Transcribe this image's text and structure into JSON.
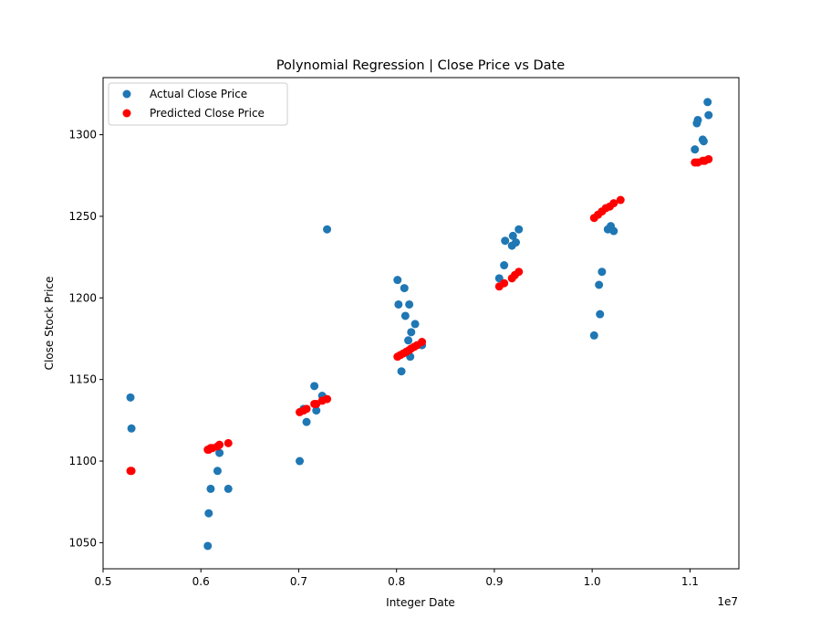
{
  "chart_data": {
    "type": "scatter",
    "title": "Polynomial Regression | Close Price vs Date",
    "xlabel": "Integer Date",
    "ylabel": "Close Stock Price",
    "x_offset_label": "1e7",
    "xlim": [
      0.5,
      1.15
    ],
    "ylim": [
      1034,
      1335
    ],
    "xticks": [
      0.5,
      0.6,
      0.7,
      0.8,
      0.9,
      1.0,
      1.1
    ],
    "xtick_labels": [
      "0.5",
      "0.6",
      "0.7",
      "0.8",
      "0.9",
      "1.0",
      "1.1"
    ],
    "yticks": [
      1050,
      1100,
      1150,
      1200,
      1250,
      1300
    ],
    "ytick_labels": [
      "1050",
      "1100",
      "1150",
      "1200",
      "1250",
      "1300"
    ],
    "legend": {
      "position": "top-left"
    },
    "series": [
      {
        "name": "Actual Close Price",
        "color": "#1f77b4",
        "points": [
          [
            0.528,
            1139
          ],
          [
            0.529,
            1120
          ],
          [
            0.607,
            1048
          ],
          [
            0.608,
            1068
          ],
          [
            0.61,
            1083
          ],
          [
            0.617,
            1094
          ],
          [
            0.619,
            1105
          ],
          [
            0.628,
            1083
          ],
          [
            0.701,
            1100
          ],
          [
            0.705,
            1132
          ],
          [
            0.708,
            1124
          ],
          [
            0.716,
            1146
          ],
          [
            0.718,
            1131
          ],
          [
            0.724,
            1140
          ],
          [
            0.729,
            1242
          ],
          [
            0.801,
            1211
          ],
          [
            0.802,
            1196
          ],
          [
            0.805,
            1155
          ],
          [
            0.808,
            1206
          ],
          [
            0.809,
            1189
          ],
          [
            0.812,
            1174
          ],
          [
            0.813,
            1196
          ],
          [
            0.814,
            1164
          ],
          [
            0.815,
            1179
          ],
          [
            0.819,
            1184
          ],
          [
            0.826,
            1171
          ],
          [
            0.905,
            1212
          ],
          [
            0.91,
            1220
          ],
          [
            0.911,
            1235
          ],
          [
            0.918,
            1232
          ],
          [
            0.919,
            1238
          ],
          [
            0.922,
            1234
          ],
          [
            0.925,
            1242
          ],
          [
            1.002,
            1177
          ],
          [
            1.007,
            1208
          ],
          [
            1.008,
            1190
          ],
          [
            1.01,
            1216
          ],
          [
            1.016,
            1242
          ],
          [
            1.019,
            1244
          ],
          [
            1.022,
            1241
          ],
          [
            1.105,
            1291
          ],
          [
            1.107,
            1307
          ],
          [
            1.108,
            1309
          ],
          [
            1.113,
            1297
          ],
          [
            1.114,
            1296
          ],
          [
            1.118,
            1320
          ],
          [
            1.119,
            1312
          ]
        ]
      },
      {
        "name": "Predicted Close Price",
        "color": "#ff0000",
        "points": [
          [
            0.528,
            1094
          ],
          [
            0.529,
            1094
          ],
          [
            0.607,
            1107
          ],
          [
            0.608,
            1107
          ],
          [
            0.61,
            1108
          ],
          [
            0.612,
            1108
          ],
          [
            0.617,
            1109
          ],
          [
            0.619,
            1110
          ],
          [
            0.628,
            1111
          ],
          [
            0.701,
            1130
          ],
          [
            0.705,
            1131
          ],
          [
            0.708,
            1132
          ],
          [
            0.716,
            1135
          ],
          [
            0.718,
            1135
          ],
          [
            0.724,
            1137
          ],
          [
            0.729,
            1138
          ],
          [
            0.801,
            1164
          ],
          [
            0.804,
            1165
          ],
          [
            0.807,
            1166
          ],
          [
            0.81,
            1167
          ],
          [
            0.813,
            1168
          ],
          [
            0.815,
            1169
          ],
          [
            0.818,
            1170
          ],
          [
            0.821,
            1171
          ],
          [
            0.826,
            1173
          ],
          [
            0.905,
            1207
          ],
          [
            0.91,
            1209
          ],
          [
            0.918,
            1212
          ],
          [
            0.921,
            1214
          ],
          [
            0.925,
            1216
          ],
          [
            1.002,
            1249
          ],
          [
            1.006,
            1251
          ],
          [
            1.01,
            1253
          ],
          [
            1.014,
            1255
          ],
          [
            1.018,
            1256
          ],
          [
            1.022,
            1258
          ],
          [
            1.029,
            1260
          ],
          [
            1.105,
            1283
          ],
          [
            1.108,
            1283
          ],
          [
            1.113,
            1284
          ],
          [
            1.115,
            1284
          ],
          [
            1.119,
            1285
          ]
        ]
      }
    ]
  }
}
